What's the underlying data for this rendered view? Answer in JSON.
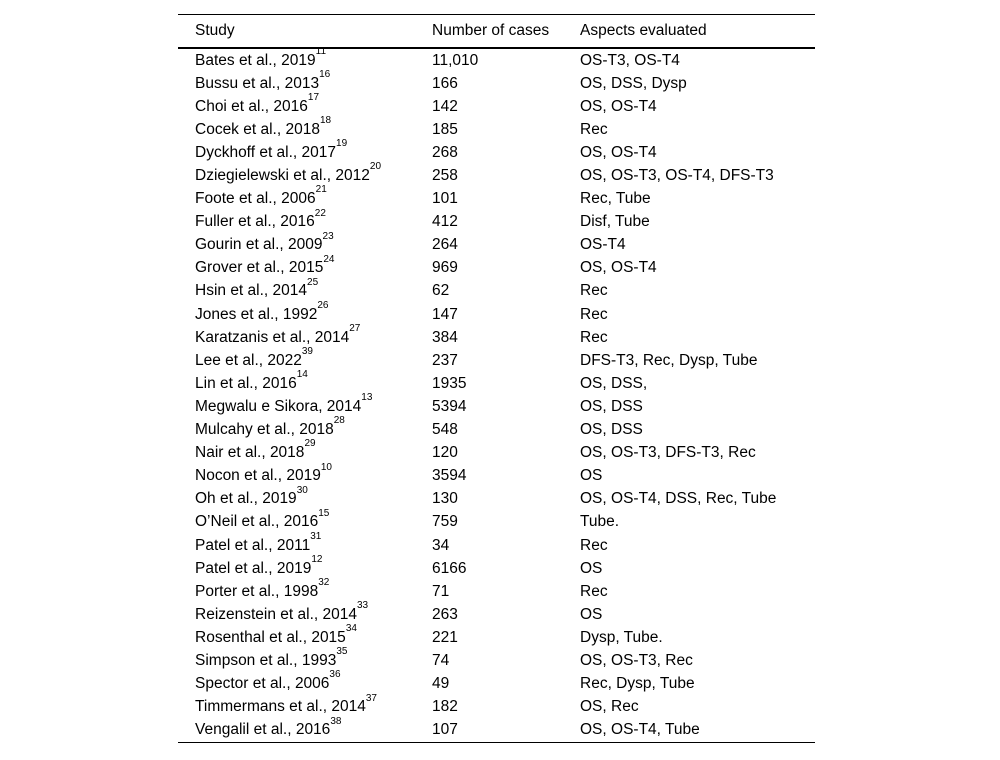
{
  "table": {
    "columns": [
      "Study",
      "Number of cases",
      "Aspects evaluated"
    ],
    "rows": [
      {
        "study": "Bates et al., 2019",
        "ref": "11",
        "cases": "11,010",
        "aspects": "OS-T3, OS-T4"
      },
      {
        "study": "Bussu et al., 2013",
        "ref": "16",
        "cases": "166",
        "aspects": "OS, DSS, Dysp"
      },
      {
        "study": "Choi et al., 2016",
        "ref": "17",
        "cases": "142",
        "aspects": "OS, OS-T4"
      },
      {
        "study": "Cocek et al., 2018",
        "ref": "18",
        "cases": "185",
        "aspects": "Rec"
      },
      {
        "study": "Dyckhoff et al., 2017",
        "ref": "19",
        "cases": "268",
        "aspects": "OS, OS-T4"
      },
      {
        "study": "Dziegielewski et al., 2012",
        "ref": "20",
        "cases": "258",
        "aspects": "OS, OS-T3, OS-T4, DFS-T3"
      },
      {
        "study": "Foote et al., 2006",
        "ref": "21",
        "cases": "101",
        "aspects": "Rec, Tube"
      },
      {
        "study": "Fuller et al., 2016",
        "ref": "22",
        "cases": "412",
        "aspects": "Disf, Tube"
      },
      {
        "study": "Gourin et al., 2009",
        "ref": "23",
        "cases": "264",
        "aspects": "OS-T4"
      },
      {
        "study": "Grover et al., 2015",
        "ref": "24",
        "cases": "969",
        "aspects": "OS, OS-T4"
      },
      {
        "study": "Hsin et al., 2014",
        "ref": "25",
        "cases": "62",
        "aspects": "Rec"
      },
      {
        "study": "Jones et al., 1992",
        "ref": "26",
        "cases": "147",
        "aspects": "Rec"
      },
      {
        "study": "Karatzanis et al., 2014",
        "ref": "27",
        "cases": "384",
        "aspects": "Rec"
      },
      {
        "study": "Lee et al., 2022",
        "ref": "39",
        "cases": "237",
        "aspects": "DFS-T3, Rec, Dysp, Tube"
      },
      {
        "study": "Lin et al., 2016",
        "ref": "14",
        "cases": "1935",
        "aspects": "OS, DSS,"
      },
      {
        "study": "Megwalu e Sikora, 2014",
        "ref": "13",
        "cases": "5394",
        "aspects": "OS, DSS"
      },
      {
        "study": "Mulcahy et al., 2018",
        "ref": "28",
        "cases": "548",
        "aspects": "OS, DSS"
      },
      {
        "study": "Nair et al., 2018",
        "ref": "29",
        "cases": "120",
        "aspects": "OS, OS-T3, DFS-T3, Rec"
      },
      {
        "study": "Nocon et al., 2019",
        "ref": "10",
        "cases": "3594",
        "aspects": "OS"
      },
      {
        "study": "Oh et al., 2019",
        "ref": "30",
        "cases": "130",
        "aspects": "OS, OS-T4, DSS, Rec, Tube"
      },
      {
        "study": "O’Neil et al., 2016",
        "ref": "15",
        "cases": "759",
        "aspects": "Tube."
      },
      {
        "study": "Patel et al., 2011",
        "ref": "31",
        "cases": "34",
        "aspects": "Rec"
      },
      {
        "study": "Patel et al., 2019",
        "ref": "12",
        "cases": "6166",
        "aspects": "OS"
      },
      {
        "study": "Porter et al., 1998",
        "ref": "32",
        "cases": "71",
        "aspects": "Rec"
      },
      {
        "study": "Reizenstein et al., 2014",
        "ref": "33",
        "cases": "263",
        "aspects": "OS"
      },
      {
        "study": "Rosenthal et al., 2015",
        "ref": "34",
        "cases": "221",
        "aspects": "Dysp, Tube."
      },
      {
        "study": "Simpson et al., 1993",
        "ref": "35",
        "cases": "74",
        "aspects": "OS, OS-T3, Rec"
      },
      {
        "study": "Spector et al., 2006",
        "ref": "36",
        "cases": "49",
        "aspects": "Rec, Dysp, Tube"
      },
      {
        "study": "Timmermans et al., 2014",
        "ref": "37",
        "cases": "182",
        "aspects": "OS, Rec"
      },
      {
        "study": "Vengalil et al., 2016",
        "ref": "38",
        "cases": "107",
        "aspects": "OS, OS-T4, Tube"
      }
    ]
  }
}
